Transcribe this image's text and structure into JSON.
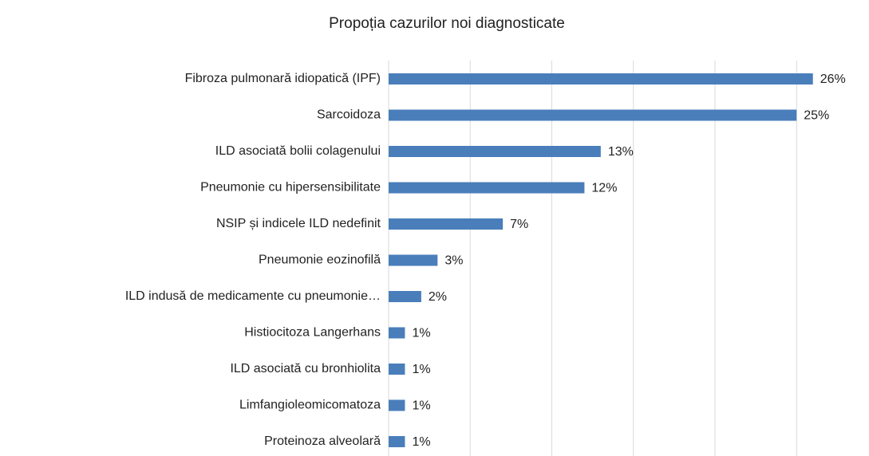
{
  "chart_data": {
    "type": "barh",
    "title": "Propoția cazurilor noi diagnosticate",
    "categories": [
      "Fibroza pulmonară idiopatică (IPF)",
      "Sarcoidoza",
      "ILD asociată bolii colagenului",
      "Pneumonie cu hipersensibilitate",
      "NSIP și indicele ILD nedefinit",
      "Pneumonie eozinofilă",
      "ILD indusă de medicamente cu pneumonie…",
      "Histiocitoza Langerhans",
      "ILD asociată cu bronhiolita",
      "Limfangioleomicomatoza",
      "Proteinoza alveolară"
    ],
    "values": [
      26,
      25,
      13,
      12,
      7,
      3,
      2,
      1,
      1,
      1,
      1
    ],
    "value_labels": [
      "26%",
      "25%",
      "13%",
      "12%",
      "7%",
      "3%",
      "2%",
      "1%",
      "1%",
      "1%",
      "1%"
    ],
    "color": "#4a7ebb",
    "xlim": [
      0,
      28
    ],
    "xticks": [
      0,
      5,
      10,
      15,
      20,
      25
    ],
    "grid": true
  }
}
